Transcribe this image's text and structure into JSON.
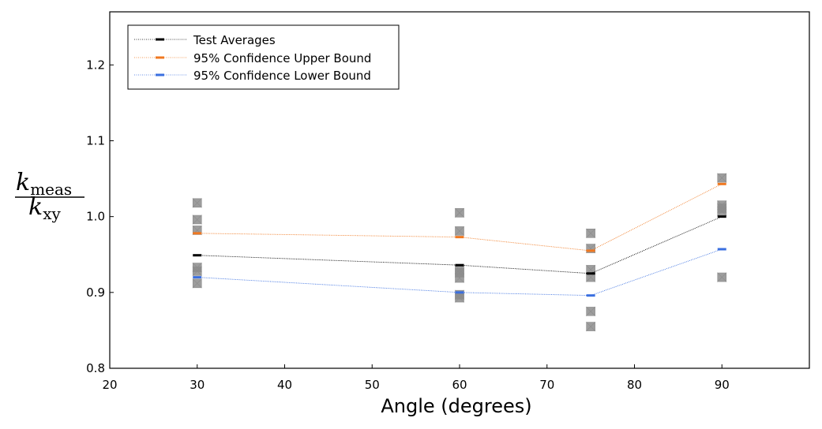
{
  "chart_data": {
    "type": "line",
    "xlabel": "Angle (degrees)",
    "ylabel": {
      "numerator_var": "k",
      "numerator_sub": "meas",
      "denominator_var": "k",
      "denominator_sub": "xy"
    },
    "xlim": [
      20,
      100
    ],
    "ylim": [
      0.8,
      1.27
    ],
    "x_ticks": [
      20,
      30,
      40,
      50,
      60,
      70,
      80,
      90
    ],
    "x_tick_labels": [
      "20",
      "30",
      "40",
      "50",
      "60",
      "70",
      "80",
      "90"
    ],
    "y_ticks": [
      0.8,
      0.9,
      1.0,
      1.1,
      1.2
    ],
    "y_tick_labels": [
      "0.8",
      "0.9",
      "1.0",
      "1.1",
      "1.2"
    ],
    "grid": false,
    "legend_position": "top-left",
    "x": [
      30,
      60,
      75,
      90
    ],
    "series": [
      {
        "name": "Test Averages",
        "color": "#000000",
        "values": [
          0.949,
          0.936,
          0.925,
          1.0
        ]
      },
      {
        "name": "95% Confidence Upper Bound",
        "color": "#f07820",
        "values": [
          0.978,
          0.973,
          0.955,
          1.043
        ]
      },
      {
        "name": "95% Confidence Lower Bound",
        "color": "#3a6fe0",
        "values": [
          0.92,
          0.9,
          0.896,
          0.957
        ]
      }
    ],
    "test_points": {
      "color": "#8c8c8c",
      "points": [
        [
          30,
          1.018
        ],
        [
          30,
          0.996
        ],
        [
          30,
          0.982
        ],
        [
          30,
          0.933
        ],
        [
          30,
          0.928
        ],
        [
          30,
          0.912
        ],
        [
          60,
          1.005
        ],
        [
          60,
          0.981
        ],
        [
          60,
          0.93
        ],
        [
          60,
          0.926
        ],
        [
          60,
          0.919
        ],
        [
          60,
          0.897
        ],
        [
          60,
          0.893
        ],
        [
          75,
          0.978
        ],
        [
          75,
          0.958
        ],
        [
          75,
          0.93
        ],
        [
          75,
          0.92
        ],
        [
          75,
          0.875
        ],
        [
          75,
          0.855
        ],
        [
          90,
          1.051
        ],
        [
          90,
          1.015
        ],
        [
          90,
          1.011
        ],
        [
          90,
          1.007
        ],
        [
          90,
          0.92
        ]
      ]
    }
  }
}
